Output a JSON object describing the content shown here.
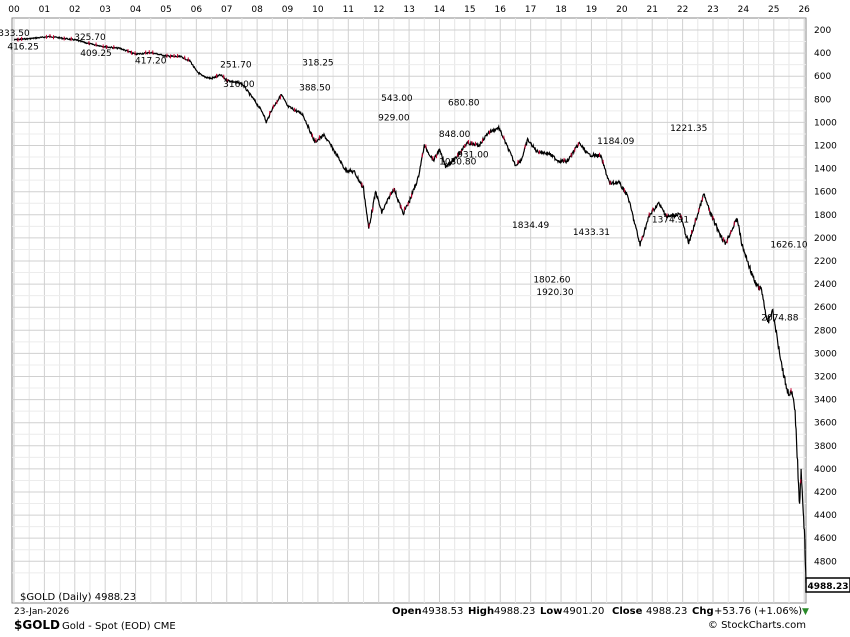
{
  "header": {
    "symbol": "$GOLD",
    "description": "Gold - Spot (EOD) CME",
    "date": "23-Jan-2026",
    "source": "© StockCharts.com",
    "open_label": "Open",
    "open": "4938.53",
    "high_label": "High",
    "high": "4988.23",
    "low_label": "Low",
    "low": "4901.20",
    "close_label": "Close",
    "close": "4988.23",
    "chg_label": "Chg",
    "chg": "+53.76 (+1.06%)",
    "legend": "$GOLD (Daily) 4988.23",
    "last_value": "4988.23"
  },
  "colors": {
    "line": "#000000",
    "down": "#cc0033",
    "grid": "#d0d0d0",
    "last_box": "#000000"
  },
  "chart_data": {
    "type": "line",
    "x_tick_labels": [
      "00",
      "01",
      "02",
      "03",
      "04",
      "05",
      "06",
      "07",
      "08",
      "09",
      "10",
      "11",
      "12",
      "13",
      "14",
      "15",
      "16",
      "17",
      "18",
      "19",
      "20",
      "21",
      "22",
      "23",
      "24",
      "25",
      "26"
    ],
    "x_range": [
      2000,
      2026
    ],
    "y_tick_labels": [
      "200",
      "400",
      "600",
      "800",
      "1000",
      "1200",
      "1400",
      "1600",
      "1800",
      "2000",
      "2200",
      "2400",
      "2600",
      "2800",
      "3000",
      "3200",
      "3400",
      "3600",
      "3800",
      "4000",
      "4200",
      "4400",
      "4600",
      "4800"
    ],
    "y_range": [
      200,
      4988
    ],
    "series": [
      {
        "points": [
          [
            2000.0,
            285
          ],
          [
            2000.5,
            275
          ],
          [
            2001.0,
            262
          ],
          [
            2001.2,
            256
          ],
          [
            2001.6,
            272
          ],
          [
            2002.0,
            285
          ],
          [
            2002.5,
            320
          ],
          [
            2003.0,
            345
          ],
          [
            2003.5,
            360
          ],
          [
            2004.0,
            410
          ],
          [
            2004.5,
            395
          ],
          [
            2005.0,
            425
          ],
          [
            2005.5,
            432
          ],
          [
            2005.8,
            470
          ],
          [
            2006.0,
            555
          ],
          [
            2006.2,
            600
          ],
          [
            2006.5,
            620
          ],
          [
            2006.8,
            590
          ],
          [
            2007.0,
            635
          ],
          [
            2007.5,
            665
          ],
          [
            2007.9,
            805
          ],
          [
            2008.2,
            920
          ],
          [
            2008.3,
            1000
          ],
          [
            2008.5,
            880
          ],
          [
            2008.8,
            760
          ],
          [
            2009.0,
            860
          ],
          [
            2009.5,
            930
          ],
          [
            2009.9,
            1170
          ],
          [
            2010.2,
            1110
          ],
          [
            2010.5,
            1230
          ],
          [
            2010.9,
            1410
          ],
          [
            2011.2,
            1430
          ],
          [
            2011.5,
            1570
          ],
          [
            2011.67,
            1920
          ],
          [
            2011.9,
            1600
          ],
          [
            2012.1,
            1780
          ],
          [
            2012.5,
            1570
          ],
          [
            2012.8,
            1790
          ],
          [
            2013.0,
            1690
          ],
          [
            2013.3,
            1480
          ],
          [
            2013.5,
            1200
          ],
          [
            2013.8,
            1330
          ],
          [
            2014.0,
            1240
          ],
          [
            2014.2,
            1380
          ],
          [
            2014.5,
            1320
          ],
          [
            2014.9,
            1180
          ],
          [
            2015.3,
            1200
          ],
          [
            2015.6,
            1090
          ],
          [
            2015.95,
            1045
          ],
          [
            2016.3,
            1250
          ],
          [
            2016.5,
            1370
          ],
          [
            2016.7,
            1320
          ],
          [
            2016.9,
            1150
          ],
          [
            2017.2,
            1250
          ],
          [
            2017.6,
            1270
          ],
          [
            2017.9,
            1330
          ],
          [
            2018.2,
            1340
          ],
          [
            2018.6,
            1180
          ],
          [
            2018.9,
            1280
          ],
          [
            2019.3,
            1290
          ],
          [
            2019.6,
            1530
          ],
          [
            2019.9,
            1520
          ],
          [
            2020.2,
            1640
          ],
          [
            2020.6,
            2060
          ],
          [
            2020.9,
            1810
          ],
          [
            2021.2,
            1700
          ],
          [
            2021.5,
            1820
          ],
          [
            2021.9,
            1790
          ],
          [
            2022.2,
            2050
          ],
          [
            2022.7,
            1620
          ],
          [
            2022.9,
            1780
          ],
          [
            2023.2,
            1950
          ],
          [
            2023.4,
            2050
          ],
          [
            2023.8,
            1830
          ],
          [
            2023.95,
            2060
          ],
          [
            2024.2,
            2250
          ],
          [
            2024.4,
            2400
          ],
          [
            2024.6,
            2450
          ],
          [
            2024.8,
            2750
          ],
          [
            2024.95,
            2620
          ],
          [
            2025.2,
            3000
          ],
          [
            2025.3,
            3150
          ],
          [
            2025.45,
            3330
          ],
          [
            2025.6,
            3350
          ],
          [
            2025.7,
            3500
          ],
          [
            2025.8,
            4050
          ],
          [
            2025.85,
            4300
          ],
          [
            2025.9,
            4000
          ],
          [
            2025.97,
            4400
          ],
          [
            2026.02,
            4600
          ],
          [
            2026.06,
            4988
          ]
        ]
      }
    ],
    "annotations": [
      {
        "text": "333.50",
        "x": 2000.0,
        "y": 285,
        "pos": "above"
      },
      {
        "text": "416.25",
        "x": 2000.3,
        "y": 275,
        "pos": "below"
      },
      {
        "text": "325.70",
        "x": 2002.5,
        "y": 320,
        "pos": "above"
      },
      {
        "text": "409.25",
        "x": 2002.7,
        "y": 330,
        "pos": "below"
      },
      {
        "text": "417.20",
        "x": 2004.5,
        "y": 395,
        "pos": "below"
      },
      {
        "text": "251.70",
        "x": 2007.3,
        "y": 560,
        "pos": "above"
      },
      {
        "text": "316.00",
        "x": 2007.4,
        "y": 600,
        "pos": "below"
      },
      {
        "text": "318.25",
        "x": 2010.0,
        "y": 540,
        "pos": "above"
      },
      {
        "text": "388.50",
        "x": 2009.9,
        "y": 630,
        "pos": "below"
      },
      {
        "text": "543.00",
        "x": 2012.6,
        "y": 720,
        "pos": "below"
      },
      {
        "text": "929.00",
        "x": 2012.5,
        "y": 890,
        "pos": "below"
      },
      {
        "text": "680.80",
        "x": 2014.8,
        "y": 890,
        "pos": "above"
      },
      {
        "text": "848.00",
        "x": 2014.5,
        "y": 1030,
        "pos": "below"
      },
      {
        "text": "1030.80",
        "x": 2014.6,
        "y": 1270,
        "pos": "below"
      },
      {
        "text": "931.00",
        "x": 2015.1,
        "y": 1210,
        "pos": "below"
      },
      {
        "text": "1834.49",
        "x": 2017.0,
        "y": 1820,
        "pos": "below"
      },
      {
        "text": "1802.60",
        "x": 2017.7,
        "y": 2290,
        "pos": "below"
      },
      {
        "text": "1920.30",
        "x": 2017.8,
        "y": 2400,
        "pos": "below"
      },
      {
        "text": "1433.31",
        "x": 2019.0,
        "y": 1880,
        "pos": "below"
      },
      {
        "text": "1184.09",
        "x": 2019.8,
        "y": 1220,
        "pos": "above"
      },
      {
        "text": "1221.35",
        "x": 2022.2,
        "y": 1110,
        "pos": "above"
      },
      {
        "text": "1374.91",
        "x": 2021.6,
        "y": 1770,
        "pos": "below"
      },
      {
        "text": "1626.10",
        "x": 2025.5,
        "y": 1990,
        "pos": "below"
      },
      {
        "text": "2074.88",
        "x": 2025.2,
        "y": 2620,
        "pos": "below"
      }
    ]
  }
}
